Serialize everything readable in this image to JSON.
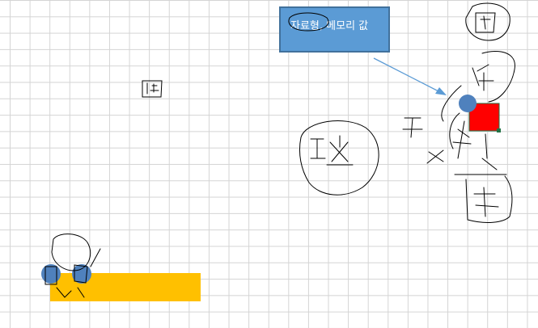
{
  "callout": {
    "text": "자료형, 메모리 값"
  },
  "colors": {
    "grid": "#d4d4d4",
    "callout_fill": "#5b9bd5",
    "callout_border": "#41719c",
    "red_cell": "#ff0000",
    "orange_bar": "#ffc000",
    "node_fill": "#4f81bd",
    "arrow": "#5b9bd5",
    "ink": "#000000",
    "selection_handle": "#217346"
  },
  "icons": [
    "speech-bubble-icon",
    "arrow-icon"
  ]
}
